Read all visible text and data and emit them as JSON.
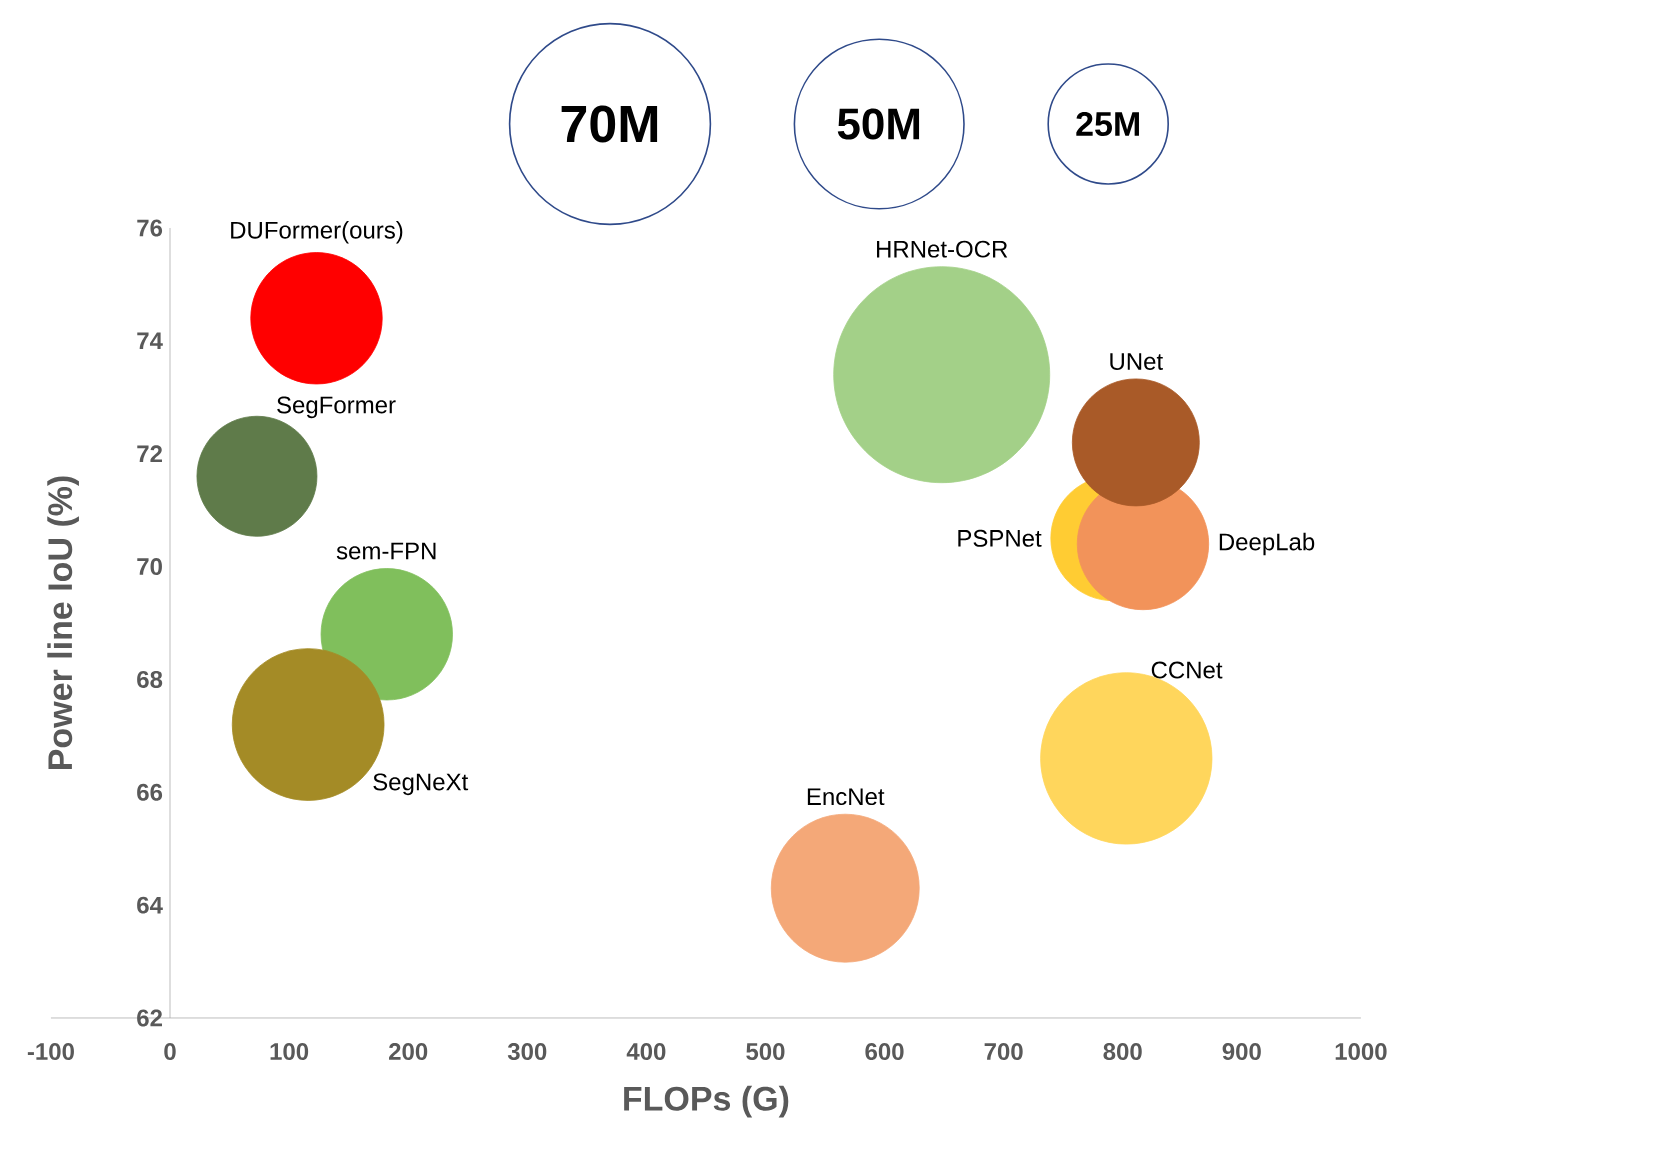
{
  "chart_data": {
    "type": "bubble",
    "xlabel": "FLOPs   (G)",
    "ylabel": "Power line IoU   (%)",
    "xlim": [
      -100,
      1000
    ],
    "xticks": [
      -100,
      0,
      100,
      200,
      300,
      400,
      500,
      600,
      700,
      800,
      900,
      1000
    ],
    "ylim": [
      62,
      76
    ],
    "yticks": [
      62,
      64,
      66,
      68,
      70,
      72,
      74,
      76
    ],
    "size_legend": [
      {
        "value": 70,
        "label": "70M"
      },
      {
        "value": 50,
        "label": "50M"
      },
      {
        "value": 25,
        "label": "25M"
      }
    ],
    "series": [
      {
        "name": "DUFormer(ours)",
        "color": "#ff0000",
        "x": [
          123
        ],
        "values": [
          74.4
        ],
        "sizes": [
          30
        ]
      },
      {
        "name": "SegFormer",
        "color": "#5f7b4a",
        "x": [
          73
        ],
        "values": [
          71.6
        ],
        "sizes": [
          25
        ]
      },
      {
        "name": "sem-FPN",
        "color": "#80bf5c",
        "x": [
          182
        ],
        "values": [
          68.8
        ],
        "sizes": [
          30
        ]
      },
      {
        "name": "SegNeXt",
        "color": "#a48b26",
        "x": [
          116
        ],
        "values": [
          67.2
        ],
        "sizes": [
          40
        ]
      },
      {
        "name": "HRNet-OCR",
        "color": "#a3d088",
        "x": [
          648
        ],
        "values": [
          73.4
        ],
        "sizes": [
          81
        ]
      },
      {
        "name": "PSPNet",
        "color": "#ffcc33",
        "x": [
          792
        ],
        "values": [
          70.5
        ],
        "sizes": [
          27
        ]
      },
      {
        "name": "DeepLab",
        "color": "#f2935a",
        "x": [
          817
        ],
        "values": [
          70.4
        ],
        "sizes": [
          30
        ]
      },
      {
        "name": "UNet",
        "color": "#a95a28",
        "x": [
          811
        ],
        "values": [
          72.2
        ],
        "sizes": [
          28
        ]
      },
      {
        "name": "CCNet",
        "color": "#ffd65c",
        "x": [
          803
        ],
        "values": [
          66.6
        ],
        "sizes": [
          51
        ]
      },
      {
        "name": "EncNet",
        "color": "#f4a878",
        "x": [
          567
        ],
        "values": [
          64.3
        ],
        "sizes": [
          38
        ]
      }
    ]
  }
}
